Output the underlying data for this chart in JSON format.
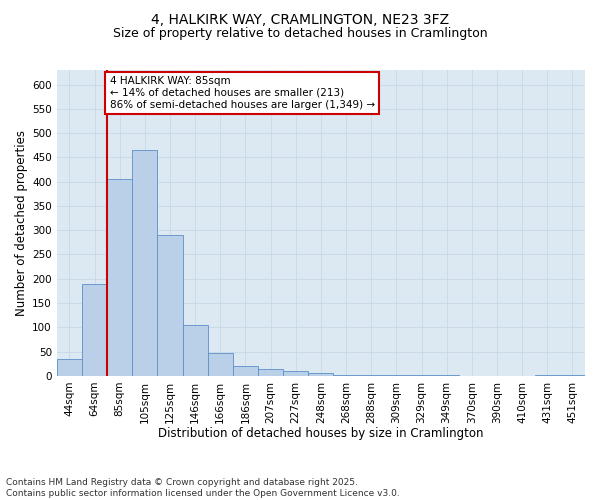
{
  "title1": "4, HALKIRK WAY, CRAMLINGTON, NE23 3FZ",
  "title2": "Size of property relative to detached houses in Cramlington",
  "xlabel": "Distribution of detached houses by size in Cramlington",
  "ylabel": "Number of detached properties",
  "categories": [
    "44sqm",
    "64sqm",
    "85sqm",
    "105sqm",
    "125sqm",
    "146sqm",
    "166sqm",
    "186sqm",
    "207sqm",
    "227sqm",
    "248sqm",
    "268sqm",
    "288sqm",
    "309sqm",
    "329sqm",
    "349sqm",
    "370sqm",
    "390sqm",
    "410sqm",
    "431sqm",
    "451sqm"
  ],
  "values": [
    35,
    190,
    405,
    465,
    290,
    105,
    48,
    20,
    15,
    10,
    6,
    2,
    2,
    1,
    1,
    1,
    0,
    0,
    0,
    2,
    1
  ],
  "bar_color": "#bad0e8",
  "bar_edge_color": "#5b8fc9",
  "vline_index": 2,
  "vline_color": "#cc0000",
  "annotation_line1": "4 HALKIRK WAY: 85sqm",
  "annotation_line2": "← 14% of detached houses are smaller (213)",
  "annotation_line3": "86% of semi-detached houses are larger (1,349) →",
  "annotation_box_color": "#ffffff",
  "annotation_box_edge": "#cc0000",
  "ylim": [
    0,
    630
  ],
  "yticks": [
    0,
    50,
    100,
    150,
    200,
    250,
    300,
    350,
    400,
    450,
    500,
    550,
    600
  ],
  "grid_color": "#c8d8e8",
  "bg_color": "#dce8f2",
  "footnote": "Contains HM Land Registry data © Crown copyright and database right 2025.\nContains public sector information licensed under the Open Government Licence v3.0.",
  "title_fontsize": 10,
  "subtitle_fontsize": 9,
  "xlabel_fontsize": 8.5,
  "ylabel_fontsize": 8.5,
  "tick_fontsize": 7.5,
  "annot_fontsize": 7.5,
  "footnote_fontsize": 6.5
}
